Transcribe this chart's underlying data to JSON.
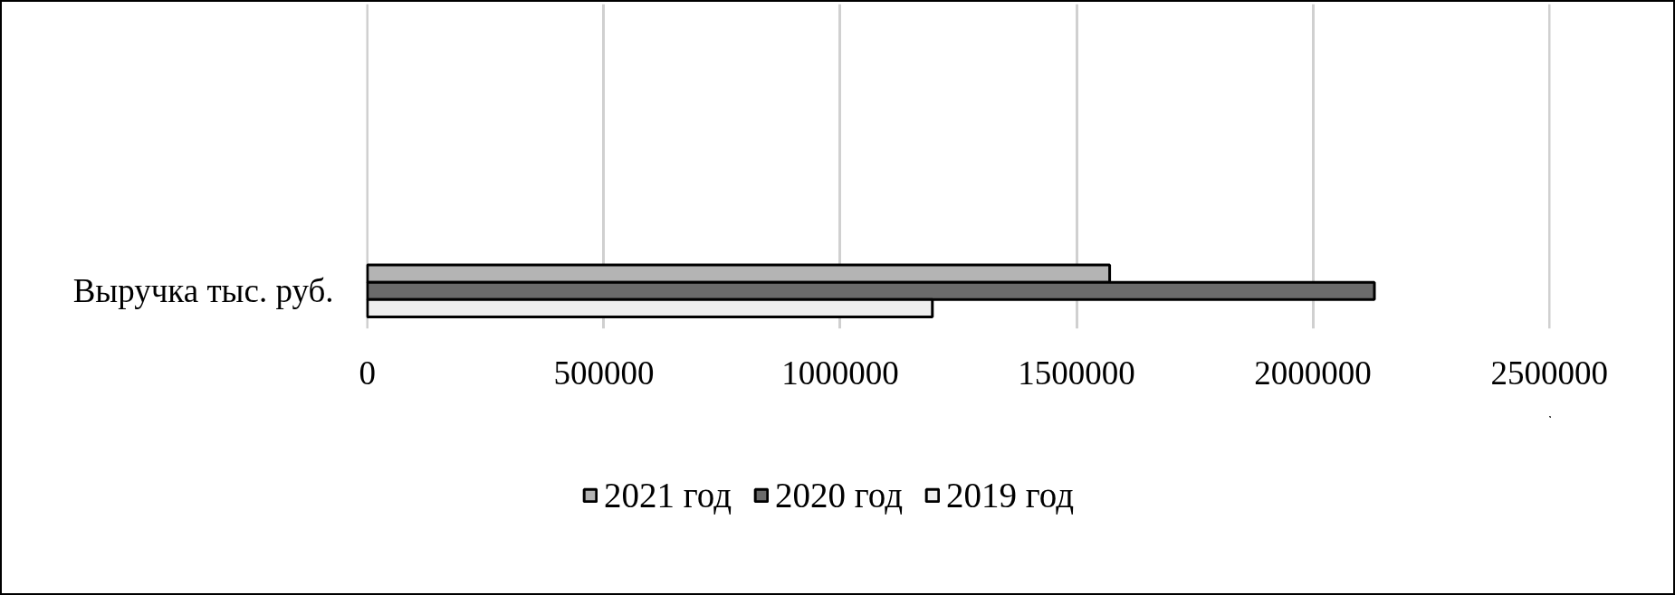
{
  "chart_data": {
    "type": "bar",
    "orientation": "horizontal",
    "categories": [
      "Выручка тыс. руб."
    ],
    "series": [
      {
        "name": "2021 год",
        "color": "#b4b4b4",
        "values": [
          1570000
        ]
      },
      {
        "name": "2020 год",
        "color": "#6b6b6b",
        "values": [
          2130000
        ]
      },
      {
        "name": "2019 год",
        "color": "#eeeeee",
        "values": [
          1195000
        ]
      }
    ],
    "xlim": [
      0,
      2500000
    ],
    "xticks": [
      0,
      500000,
      1000000,
      1500000,
      2000000,
      2500000
    ],
    "grid": "x",
    "legend": "bottom"
  }
}
